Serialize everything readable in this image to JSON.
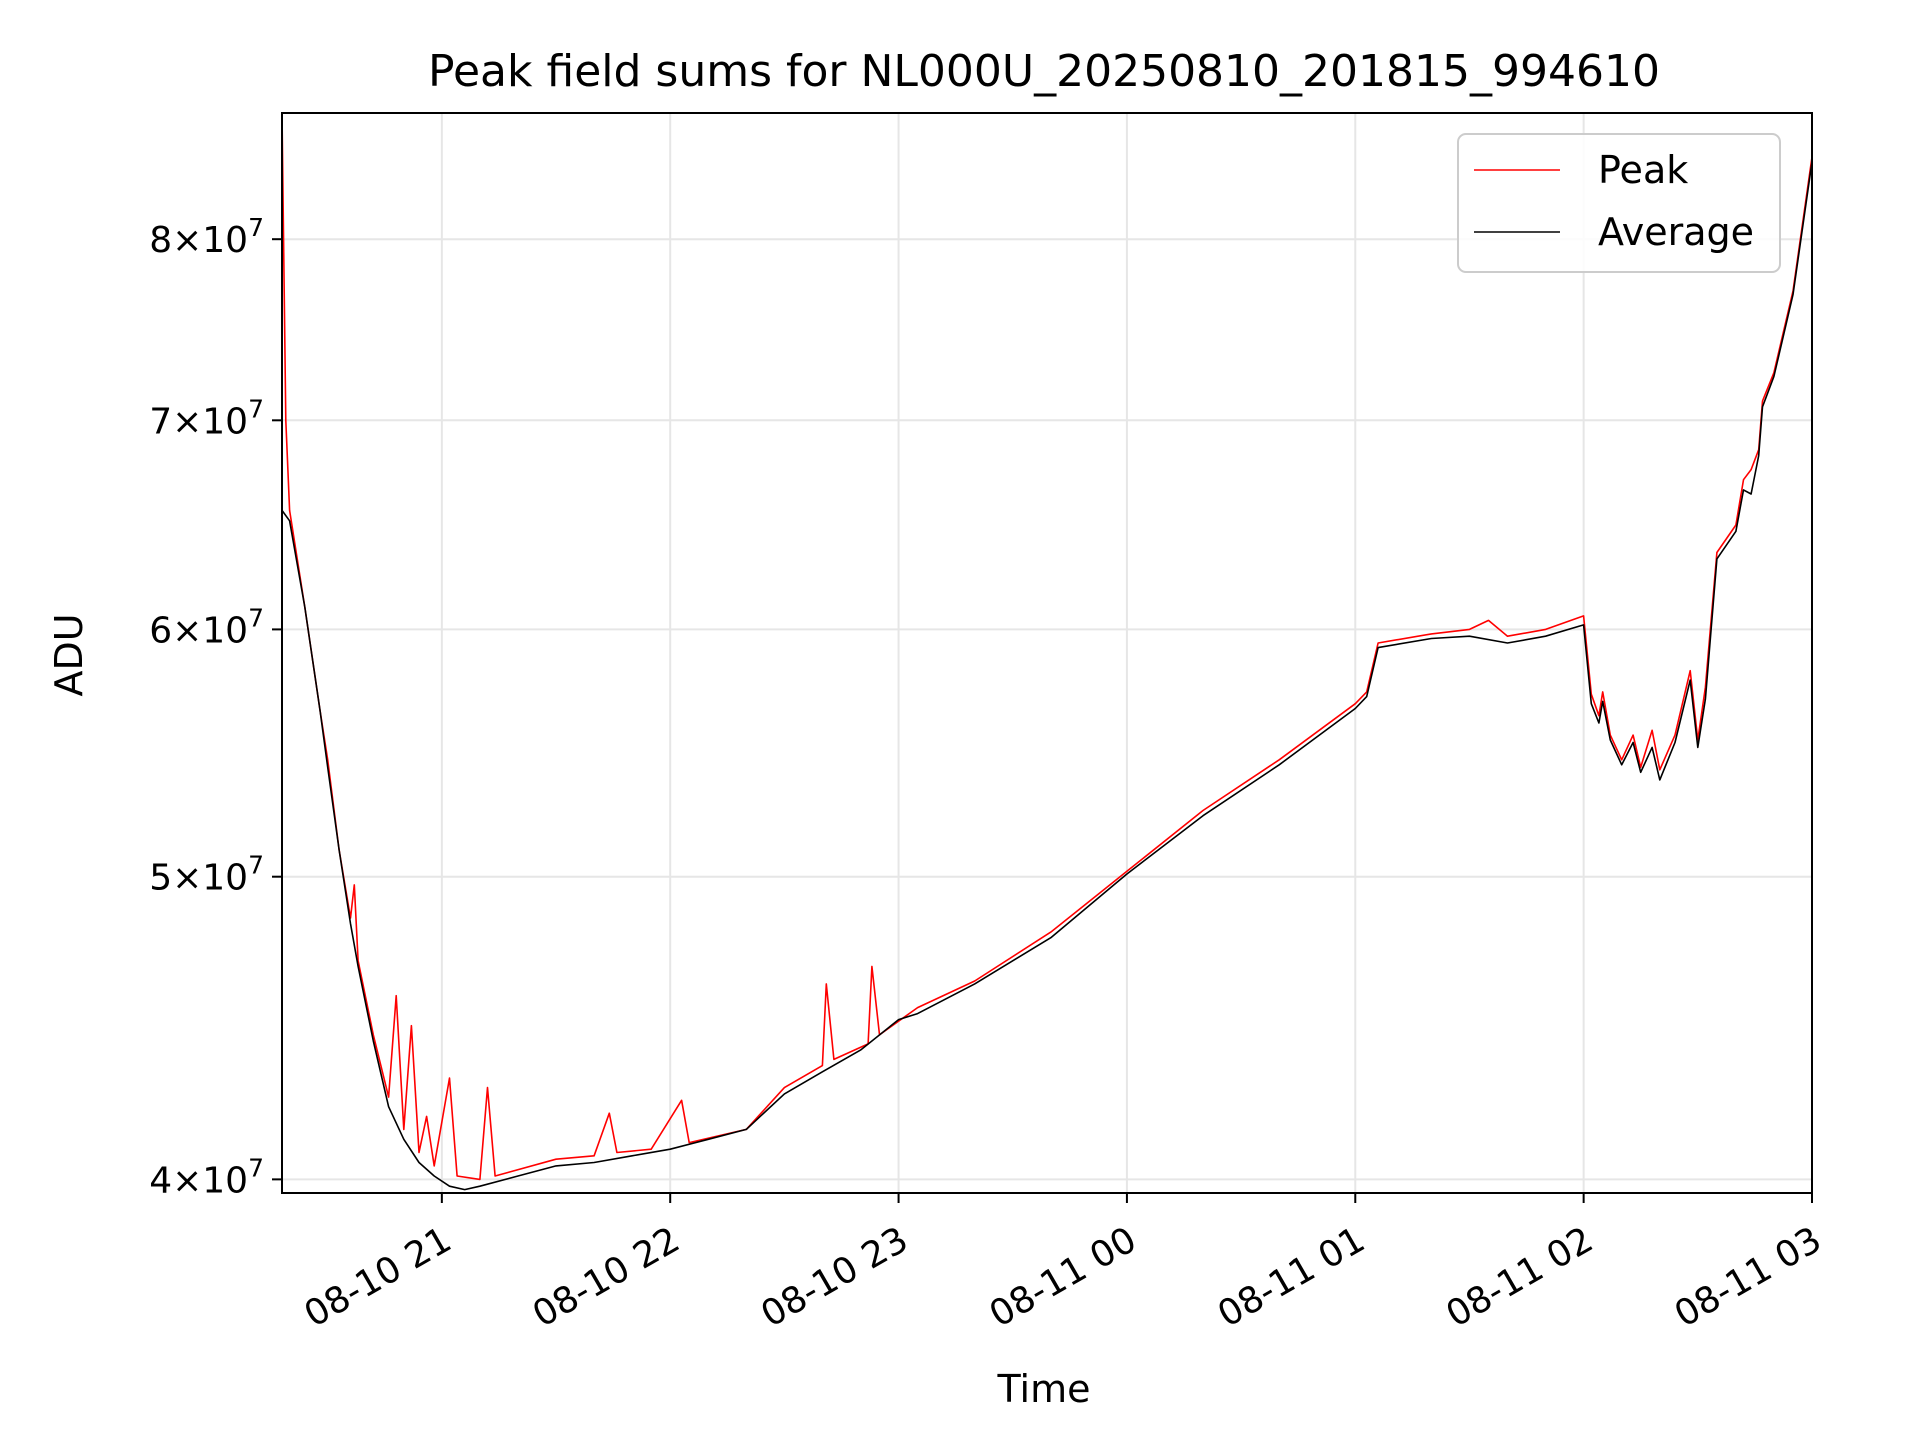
{
  "chart_data": {
    "type": "line",
    "title": "Peak field sums for NL000U_20250810_201815_994610",
    "xlabel": "Time",
    "ylabel": "ADU",
    "xlim": [
      "2025-08-10 20:18",
      "2025-08-11 03:00"
    ],
    "ylim": [
      39600000,
      87800000
    ],
    "y_scale": "log",
    "grid": true,
    "legend_position": "top-right",
    "x_ticks": [
      {
        "t": "2025-08-10 21:00",
        "label": "08-10 21"
      },
      {
        "t": "2025-08-10 22:00",
        "label": "08-10 22"
      },
      {
        "t": "2025-08-10 23:00",
        "label": "08-10 23"
      },
      {
        "t": "2025-08-11 00:00",
        "label": "08-11 00"
      },
      {
        "t": "2025-08-11 01:00",
        "label": "08-11 01"
      },
      {
        "t": "2025-08-11 02:00",
        "label": "08-11 02"
      },
      {
        "t": "2025-08-11 03:00",
        "label": "08-11 03"
      }
    ],
    "y_ticks": [
      {
        "v": 40000000,
        "mant": "4",
        "exp": "7"
      },
      {
        "v": 50000000,
        "mant": "5",
        "exp": "7"
      },
      {
        "v": 60000000,
        "mant": "6",
        "exp": "7"
      },
      {
        "v": 70000000,
        "mant": "7",
        "exp": "7"
      },
      {
        "v": 80000000,
        "mant": "8",
        "exp": "7"
      }
    ],
    "series": [
      {
        "name": "Peak",
        "color": "#ff0000",
        "points": [
          [
            "2025-08-10 20:18",
            65600000
          ],
          [
            "2025-08-10 20:18",
            87800000
          ],
          [
            "2025-08-10 20:19",
            70000000
          ],
          [
            "2025-08-10 20:20",
            65500000
          ],
          [
            "2025-08-10 20:24",
            61000000
          ],
          [
            "2025-08-10 20:28",
            56500000
          ],
          [
            "2025-08-10 20:30",
            54500000
          ],
          [
            "2025-08-10 20:33",
            51000000
          ],
          [
            "2025-08-10 20:36",
            48500000
          ],
          [
            "2025-08-10 20:37",
            49700000
          ],
          [
            "2025-08-10 20:38",
            47000000
          ],
          [
            "2025-08-10 20:42",
            44500000
          ],
          [
            "2025-08-10 20:46",
            42500000
          ],
          [
            "2025-08-10 20:48",
            45800000
          ],
          [
            "2025-08-10 20:50",
            41500000
          ],
          [
            "2025-08-10 20:52",
            44800000
          ],
          [
            "2025-08-10 20:54",
            40800000
          ],
          [
            "2025-08-10 20:56",
            41900000
          ],
          [
            "2025-08-10 20:58",
            40400000
          ],
          [
            "2025-08-10 21:02",
            43100000
          ],
          [
            "2025-08-10 21:04",
            40100000
          ],
          [
            "2025-08-10 21:10",
            40000000
          ],
          [
            "2025-08-10 21:12",
            42800000
          ],
          [
            "2025-08-10 21:14",
            40100000
          ],
          [
            "2025-08-10 21:30",
            40600000
          ],
          [
            "2025-08-10 21:40",
            40700000
          ],
          [
            "2025-08-10 21:44",
            42000000
          ],
          [
            "2025-08-10 21:46",
            40800000
          ],
          [
            "2025-08-10 21:55",
            40900000
          ],
          [
            "2025-08-10 22:03",
            42400000
          ],
          [
            "2025-08-10 22:05",
            41100000
          ],
          [
            "2025-08-10 22:20",
            41500000
          ],
          [
            "2025-08-10 22:30",
            42800000
          ],
          [
            "2025-08-10 22:40",
            43500000
          ],
          [
            "2025-08-10 22:41",
            46200000
          ],
          [
            "2025-08-10 22:43",
            43700000
          ],
          [
            "2025-08-10 22:52",
            44200000
          ],
          [
            "2025-08-10 22:53",
            46800000
          ],
          [
            "2025-08-10 22:55",
            44500000
          ],
          [
            "2025-08-10 23:05",
            45400000
          ],
          [
            "2025-08-10 23:20",
            46300000
          ],
          [
            "2025-08-10 23:40",
            48000000
          ],
          [
            "2025-08-11 00:00",
            50200000
          ],
          [
            "2025-08-11 00:20",
            52500000
          ],
          [
            "2025-08-11 00:40",
            54500000
          ],
          [
            "2025-08-11 01:00",
            56800000
          ],
          [
            "2025-08-11 01:03",
            57300000
          ],
          [
            "2025-08-11 01:06",
            59400000
          ],
          [
            "2025-08-11 01:20",
            59800000
          ],
          [
            "2025-08-11 01:30",
            60000000
          ],
          [
            "2025-08-11 01:35",
            60400000
          ],
          [
            "2025-08-11 01:40",
            59700000
          ],
          [
            "2025-08-11 01:50",
            60000000
          ],
          [
            "2025-08-11 02:00",
            60600000
          ],
          [
            "2025-08-11 02:02",
            57200000
          ],
          [
            "2025-08-11 02:04",
            56300000
          ],
          [
            "2025-08-11 02:05",
            57300000
          ],
          [
            "2025-08-11 02:07",
            55500000
          ],
          [
            "2025-08-11 02:10",
            54500000
          ],
          [
            "2025-08-11 02:13",
            55500000
          ],
          [
            "2025-08-11 02:15",
            54200000
          ],
          [
            "2025-08-11 02:18",
            55700000
          ],
          [
            "2025-08-11 02:20",
            54100000
          ],
          [
            "2025-08-11 02:24",
            55500000
          ],
          [
            "2025-08-11 02:28",
            58200000
          ],
          [
            "2025-08-11 02:30",
            55300000
          ],
          [
            "2025-08-11 02:32",
            57500000
          ],
          [
            "2025-08-11 02:35",
            63500000
          ],
          [
            "2025-08-11 02:40",
            64800000
          ],
          [
            "2025-08-11 02:42",
            67000000
          ],
          [
            "2025-08-11 02:44",
            67500000
          ],
          [
            "2025-08-11 02:46",
            68500000
          ],
          [
            "2025-08-11 02:47",
            71000000
          ],
          [
            "2025-08-11 02:50",
            72500000
          ],
          [
            "2025-08-11 02:55",
            77000000
          ],
          [
            "2025-08-11 03:00",
            85000000
          ]
        ]
      },
      {
        "name": "Average",
        "color": "#000000",
        "points": [
          [
            "2025-08-10 20:18",
            65500000
          ],
          [
            "2025-08-10 20:20",
            65000000
          ],
          [
            "2025-08-10 20:24",
            61000000
          ],
          [
            "2025-08-10 20:28",
            56500000
          ],
          [
            "2025-08-10 20:30",
            54200000
          ],
          [
            "2025-08-10 20:33",
            51000000
          ],
          [
            "2025-08-10 20:36",
            48300000
          ],
          [
            "2025-08-10 20:38",
            46800000
          ],
          [
            "2025-08-10 20:42",
            44300000
          ],
          [
            "2025-08-10 20:46",
            42200000
          ],
          [
            "2025-08-10 20:50",
            41200000
          ],
          [
            "2025-08-10 20:54",
            40500000
          ],
          [
            "2025-08-10 20:58",
            40100000
          ],
          [
            "2025-08-10 21:02",
            39800000
          ],
          [
            "2025-08-10 21:06",
            39700000
          ],
          [
            "2025-08-10 21:10",
            39800000
          ],
          [
            "2025-08-10 21:20",
            40100000
          ],
          [
            "2025-08-10 21:30",
            40400000
          ],
          [
            "2025-08-10 21:40",
            40500000
          ],
          [
            "2025-08-10 21:50",
            40700000
          ],
          [
            "2025-08-10 22:00",
            40900000
          ],
          [
            "2025-08-10 22:10",
            41200000
          ],
          [
            "2025-08-10 22:20",
            41500000
          ],
          [
            "2025-08-10 22:30",
            42600000
          ],
          [
            "2025-08-10 22:40",
            43300000
          ],
          [
            "2025-08-10 22:50",
            44000000
          ],
          [
            "2025-08-10 23:00",
            45000000
          ],
          [
            "2025-08-10 23:05",
            45200000
          ],
          [
            "2025-08-10 23:20",
            46200000
          ],
          [
            "2025-08-10 23:40",
            47800000
          ],
          [
            "2025-08-11 00:00",
            50100000
          ],
          [
            "2025-08-11 00:20",
            52300000
          ],
          [
            "2025-08-11 00:40",
            54300000
          ],
          [
            "2025-08-11 01:00",
            56600000
          ],
          [
            "2025-08-11 01:03",
            57100000
          ],
          [
            "2025-08-11 01:06",
            59200000
          ],
          [
            "2025-08-11 01:20",
            59600000
          ],
          [
            "2025-08-11 01:30",
            59700000
          ],
          [
            "2025-08-11 01:40",
            59400000
          ],
          [
            "2025-08-11 01:50",
            59700000
          ],
          [
            "2025-08-11 02:00",
            60200000
          ],
          [
            "2025-08-11 02:02",
            56800000
          ],
          [
            "2025-08-11 02:04",
            56000000
          ],
          [
            "2025-08-11 02:05",
            56900000
          ],
          [
            "2025-08-11 02:07",
            55300000
          ],
          [
            "2025-08-11 02:10",
            54300000
          ],
          [
            "2025-08-11 02:13",
            55200000
          ],
          [
            "2025-08-11 02:15",
            54000000
          ],
          [
            "2025-08-11 02:18",
            55000000
          ],
          [
            "2025-08-11 02:20",
            53700000
          ],
          [
            "2025-08-11 02:24",
            55200000
          ],
          [
            "2025-08-11 02:28",
            57800000
          ],
          [
            "2025-08-11 02:30",
            55000000
          ],
          [
            "2025-08-11 02:32",
            57000000
          ],
          [
            "2025-08-11 02:35",
            63200000
          ],
          [
            "2025-08-11 02:40",
            64500000
          ],
          [
            "2025-08-11 02:42",
            66500000
          ],
          [
            "2025-08-11 02:44",
            66300000
          ],
          [
            "2025-08-11 02:46",
            68200000
          ],
          [
            "2025-08-11 02:47",
            70700000
          ],
          [
            "2025-08-11 02:50",
            72300000
          ],
          [
            "2025-08-11 02:55",
            76800000
          ],
          [
            "2025-08-11 03:00",
            84700000
          ]
        ]
      }
    ]
  }
}
